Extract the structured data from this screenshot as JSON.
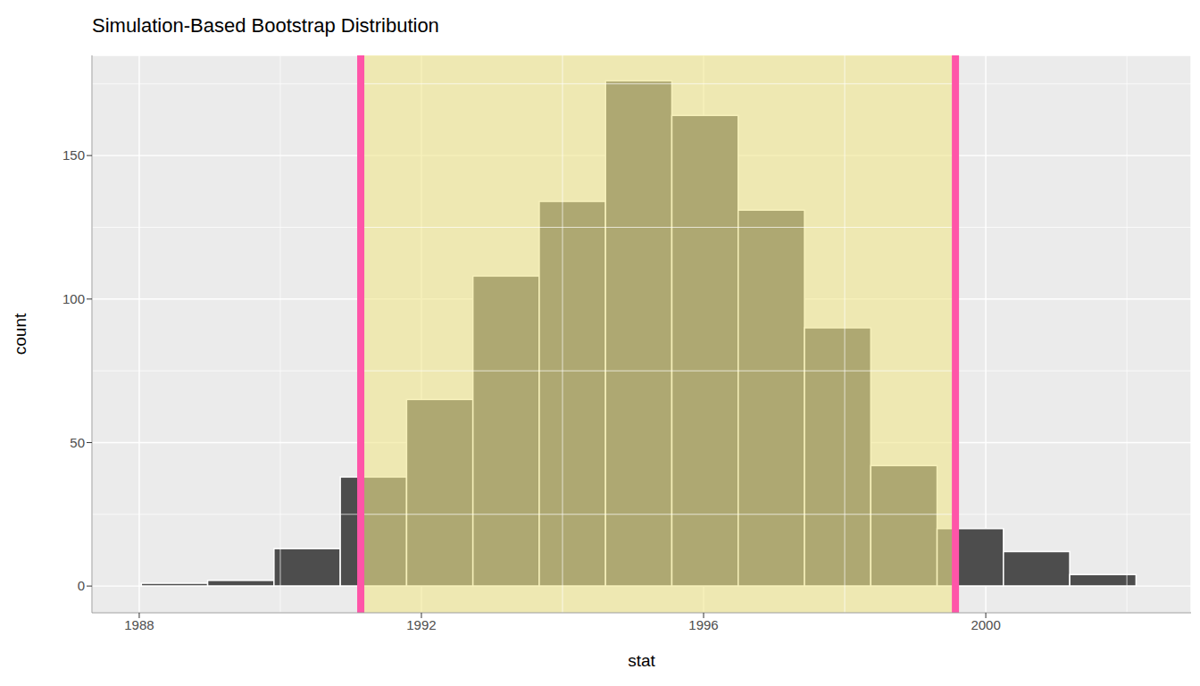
{
  "chart_data": {
    "type": "histogram",
    "title": "Simulation-Based Bootstrap Distribution",
    "x_label": "stat",
    "y_label": "count",
    "bins": [
      1988.03,
      1988.97,
      1989.91,
      1990.85,
      1991.79,
      1992.73,
      1993.67,
      1994.61,
      1995.55,
      1996.49,
      1997.43,
      1998.37,
      1999.31,
      2000.25,
      2001.19,
      2002.13
    ],
    "counts": [
      1,
      2,
      13,
      38,
      65,
      108,
      134,
      176,
      164,
      131,
      90,
      42,
      20,
      12,
      4
    ],
    "color": "#4d4d4d",
    "confidence_interval": {
      "values": [
        1991.14,
        1999.57
      ],
      "color": "#ff55a8"
    },
    "xlim": [
      1987.33,
      2002.91
    ],
    "xticks": [
      1988,
      1992,
      1996,
      2000
    ],
    "ylim": [
      -9.3,
      184.9
    ],
    "yticks": [
      0,
      50,
      100,
      150
    ],
    "grid": true
  }
}
